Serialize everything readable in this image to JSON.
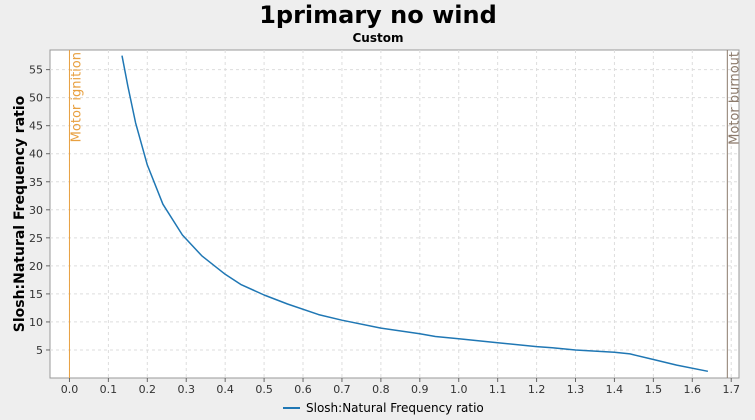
{
  "chart_data": {
    "type": "line",
    "title": "1primary no wind",
    "subtitle": "Custom",
    "xlabel": "",
    "ylabel": "Slosh:Natural Frequency ratio",
    "xlim": [
      -0.05,
      1.72
    ],
    "ylim": [
      0,
      58.5
    ],
    "x_ticks": [
      "0.0",
      "0.1",
      "0.2",
      "0.3",
      "0.4",
      "0.5",
      "0.6",
      "0.7",
      "0.8",
      "0.9",
      "1.0",
      "1.1",
      "1.2",
      "1.3",
      "1.4",
      "1.5",
      "1.6",
      "1.7"
    ],
    "y_ticks": [
      "5",
      "10",
      "15",
      "20",
      "25",
      "30",
      "35",
      "40",
      "45",
      "50",
      "55"
    ],
    "grid": true,
    "legend_position": "bottom",
    "series": [
      {
        "name": "Slosh:Natural Frequency ratio",
        "color": "#1f77b4",
        "x": [
          0.135,
          0.15,
          0.17,
          0.2,
          0.24,
          0.29,
          0.34,
          0.4,
          0.44,
          0.5,
          0.56,
          0.64,
          0.7,
          0.8,
          0.9,
          0.94,
          1.0,
          1.1,
          1.2,
          1.24,
          1.3,
          1.4,
          1.44,
          1.5,
          1.56,
          1.64
        ],
        "y": [
          57.5,
          52.0,
          45.5,
          38.0,
          31.0,
          25.5,
          21.8,
          18.5,
          16.7,
          14.8,
          13.2,
          11.3,
          10.3,
          8.9,
          7.9,
          7.4,
          7.0,
          6.3,
          5.6,
          5.4,
          5.0,
          4.6,
          4.3,
          3.3,
          2.3,
          1.2
        ]
      }
    ],
    "events": [
      {
        "label": "Motor ignition",
        "x": 0.0,
        "color": "#e8a040"
      },
      {
        "label": "Motor burnout",
        "x": 1.69,
        "color": "#8c7a6b"
      }
    ]
  }
}
